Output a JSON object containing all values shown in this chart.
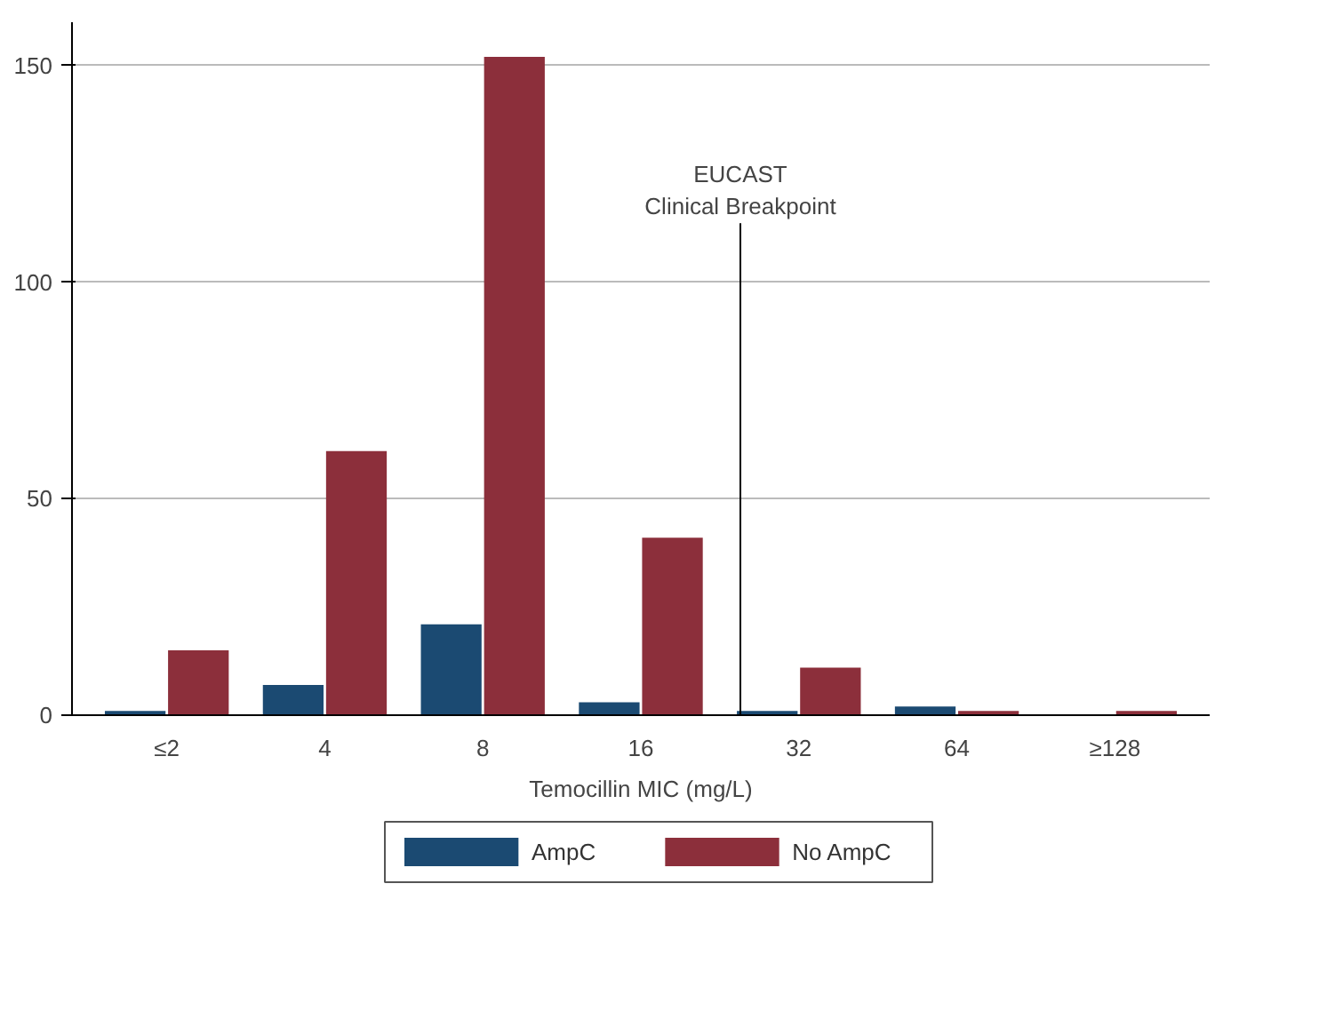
{
  "chart_data": {
    "type": "bar",
    "xlabel": "Temocillin MIC (mg/L)",
    "categories": [
      "≤2",
      "4",
      "8",
      "16",
      "32",
      "64",
      "≥128"
    ],
    "series": [
      {
        "name": "AmpC",
        "color": "#1b4a72",
        "values": [
          1,
          7,
          21,
          3,
          1,
          2,
          0
        ]
      },
      {
        "name": "No AmpC",
        "color": "#8c2f3b",
        "values": [
          15,
          61,
          152,
          41,
          11,
          1,
          1
        ]
      }
    ],
    "ylim": [
      0,
      160
    ],
    "yticks": [
      0,
      50,
      100,
      150
    ],
    "grid": "y",
    "legend": "bottom",
    "annotations": [
      "EUCAST\nClinical Breakpoint"
    ]
  }
}
